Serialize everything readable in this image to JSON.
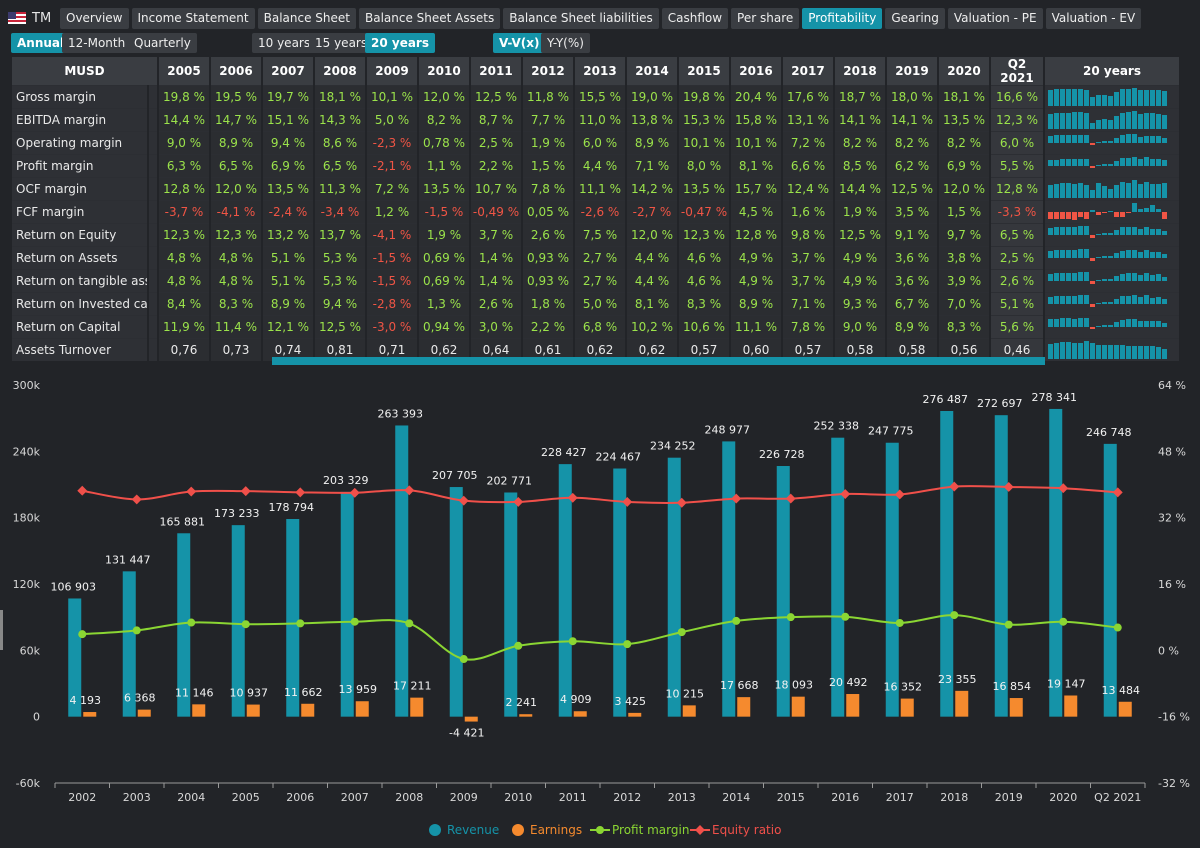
{
  "header": {
    "ticker": "TM",
    "tabs": [
      "Overview",
      "Income Statement",
      "Balance Sheet",
      "Balance Sheet Assets",
      "Balance Sheet liabilities",
      "Cashflow",
      "Per share",
      "Profitability",
      "Gearing",
      "Valuation - PE",
      "Valuation - EV"
    ],
    "active_tab": "Profitability"
  },
  "period_buttons": [
    "Annual",
    "12-Month",
    "Quarterly"
  ],
  "range_buttons": [
    "10 years",
    "15 years",
    "20 years"
  ],
  "mode_buttons": [
    "V-V(x)",
    "Y-Y(%)"
  ],
  "table": {
    "unit_label": "MUSD",
    "columns": [
      "2005",
      "2006",
      "2007",
      "2008",
      "2009",
      "2010",
      "2011",
      "2012",
      "2013",
      "2014",
      "2015",
      "2016",
      "2017",
      "2018",
      "2019",
      "2020",
      "Q2 2021"
    ],
    "spark_header": "20 years",
    "rows": [
      {
        "label": "Gross margin",
        "values": [
          "19,8 %",
          "19,5 %",
          "19,7 %",
          "18,1 %",
          "10,1 %",
          "12,0 %",
          "12,5 %",
          "11,8 %",
          "15,5 %",
          "19,0 %",
          "19,8 %",
          "20,4 %",
          "17,6 %",
          "18,7 %",
          "18,0 %",
          "18,1 %",
          "16,6 %"
        ],
        "nums": [
          19.8,
          19.5,
          19.7,
          18.1,
          10.1,
          12.0,
          12.5,
          11.8,
          15.5,
          19.0,
          19.8,
          20.4,
          17.6,
          18.7,
          18.0,
          18.1,
          16.6
        ],
        "plain": false
      },
      {
        "label": "EBITDA margin",
        "values": [
          "14,4 %",
          "14,7 %",
          "15,1 %",
          "14,3 %",
          "5,0 %",
          "8,2 %",
          "8,7 %",
          "7,7 %",
          "11,0 %",
          "13,8 %",
          "15,3 %",
          "15,8 %",
          "13,1 %",
          "14,1 %",
          "14,1 %",
          "13,5 %",
          "12,3 %"
        ],
        "nums": [
          14.4,
          14.7,
          15.1,
          14.3,
          5.0,
          8.2,
          8.7,
          7.7,
          11.0,
          13.8,
          15.3,
          15.8,
          13.1,
          14.1,
          14.1,
          13.5,
          12.3
        ],
        "plain": false
      },
      {
        "label": "Operating margin",
        "values": [
          "9,0 %",
          "8,9 %",
          "9,4 %",
          "8,6 %",
          "-2,3 %",
          "0,78 %",
          "2,5 %",
          "1,9 %",
          "6,0 %",
          "8,9 %",
          "10,1 %",
          "10,1 %",
          "7,2 %",
          "8,2 %",
          "8,2 %",
          "8,2 %",
          "6,0 %"
        ],
        "nums": [
          9.0,
          8.9,
          9.4,
          8.6,
          -2.3,
          0.78,
          2.5,
          1.9,
          6.0,
          8.9,
          10.1,
          10.1,
          7.2,
          8.2,
          8.2,
          8.2,
          6.0
        ],
        "plain": false
      },
      {
        "label": "Profit margin",
        "values": [
          "6,3 %",
          "6,5 %",
          "6,9 %",
          "6,5 %",
          "-2,1 %",
          "1,1 %",
          "2,2 %",
          "1,5 %",
          "4,4 %",
          "7,1 %",
          "8,0 %",
          "8,1 %",
          "6,6 %",
          "8,5 %",
          "6,2 %",
          "6,9 %",
          "5,5 %"
        ],
        "nums": [
          6.3,
          6.5,
          6.9,
          6.5,
          -2.1,
          1.1,
          2.2,
          1.5,
          4.4,
          7.1,
          8.0,
          8.1,
          6.6,
          8.5,
          6.2,
          6.9,
          5.5
        ],
        "plain": false
      },
      {
        "label": "OCF margin",
        "values": [
          "12,8 %",
          "12,0 %",
          "13,5 %",
          "11,3 %",
          "7,2 %",
          "13,5 %",
          "10,7 %",
          "7,8 %",
          "11,1 %",
          "14,2 %",
          "13,5 %",
          "15,7 %",
          "12,4 %",
          "14,4 %",
          "12,5 %",
          "12,0 %",
          "12,8 %"
        ],
        "nums": [
          12.8,
          12.0,
          13.5,
          11.3,
          7.2,
          13.5,
          10.7,
          7.8,
          11.1,
          14.2,
          13.5,
          15.7,
          12.4,
          14.4,
          12.5,
          12.0,
          12.8
        ],
        "plain": false
      },
      {
        "label": "FCF margin",
        "values": [
          "-3,7 %",
          "-4,1 %",
          "-2,4 %",
          "-3,4 %",
          "1,2 %",
          "-1,5 %",
          "-0,49 %",
          "0,05 %",
          "-2,6 %",
          "-2,7 %",
          "-0,47 %",
          "4,5 %",
          "1,6 %",
          "1,9 %",
          "3,5 %",
          "1,5 %",
          "-3,3 %"
        ],
        "nums": [
          -3.7,
          -4.1,
          -2.4,
          -3.4,
          1.2,
          -1.5,
          -0.49,
          0.05,
          -2.6,
          -2.7,
          -0.47,
          4.5,
          1.6,
          1.9,
          3.5,
          1.5,
          -3.3
        ],
        "plain": false
      },
      {
        "label": "Return on Equity",
        "values": [
          "12,3 %",
          "12,3 %",
          "13,2 %",
          "13,7 %",
          "-4,1 %",
          "1,9 %",
          "3,7 %",
          "2,6 %",
          "7,5 %",
          "12,0 %",
          "12,3 %",
          "12,8 %",
          "9,8 %",
          "12,5 %",
          "9,1 %",
          "9,7 %",
          "6,5 %"
        ],
        "nums": [
          12.3,
          12.3,
          13.2,
          13.7,
          -4.1,
          1.9,
          3.7,
          2.6,
          7.5,
          12.0,
          12.3,
          12.8,
          9.8,
          12.5,
          9.1,
          9.7,
          6.5
        ],
        "plain": false
      },
      {
        "label": "Return on Assets",
        "values": [
          "4,8 %",
          "4,8 %",
          "5,1 %",
          "5,3 %",
          "-1,5 %",
          "0,69 %",
          "1,4 %",
          "0,93 %",
          "2,7 %",
          "4,4 %",
          "4,6 %",
          "4,9 %",
          "3,7 %",
          "4,9 %",
          "3,6 %",
          "3,8 %",
          "2,5 %"
        ],
        "nums": [
          4.8,
          4.8,
          5.1,
          5.3,
          -1.5,
          0.69,
          1.4,
          0.93,
          2.7,
          4.4,
          4.6,
          4.9,
          3.7,
          4.9,
          3.6,
          3.8,
          2.5
        ],
        "plain": false
      },
      {
        "label": "Return on tangible assets",
        "values": [
          "4,8 %",
          "4,8 %",
          "5,1 %",
          "5,3 %",
          "-1,5 %",
          "0,69 %",
          "1,4 %",
          "0,93 %",
          "2,7 %",
          "4,4 %",
          "4,6 %",
          "4,9 %",
          "3,7 %",
          "4,9 %",
          "3,6 %",
          "3,9 %",
          "2,6 %"
        ],
        "nums": [
          4.8,
          4.8,
          5.1,
          5.3,
          -1.5,
          0.69,
          1.4,
          0.93,
          2.7,
          4.4,
          4.6,
          4.9,
          3.7,
          4.9,
          3.6,
          3.9,
          2.6
        ],
        "plain": false
      },
      {
        "label": "Return on Invested capita",
        "values": [
          "8,4 %",
          "8,3 %",
          "8,9 %",
          "9,4 %",
          "-2,8 %",
          "1,3 %",
          "2,6 %",
          "1,8 %",
          "5,0 %",
          "8,1 %",
          "8,3 %",
          "8,9 %",
          "7,1 %",
          "9,3 %",
          "6,7 %",
          "7,0 %",
          "5,1 %"
        ],
        "nums": [
          8.4,
          8.3,
          8.9,
          9.4,
          -2.8,
          1.3,
          2.6,
          1.8,
          5.0,
          8.1,
          8.3,
          8.9,
          7.1,
          9.3,
          6.7,
          7.0,
          5.1
        ],
        "plain": false
      },
      {
        "label": "Return on Capital",
        "values": [
          "11,9 %",
          "11,4 %",
          "12,1 %",
          "12,5 %",
          "-3,0 %",
          "0,94 %",
          "3,0 %",
          "2,2 %",
          "6,8 %",
          "10,2 %",
          "10,6 %",
          "11,1 %",
          "7,8 %",
          "9,0 %",
          "8,9 %",
          "8,3 %",
          "5,6 %"
        ],
        "nums": [
          11.9,
          11.4,
          12.1,
          12.5,
          -3.0,
          0.94,
          3.0,
          2.2,
          6.8,
          10.2,
          10.6,
          11.1,
          7.8,
          9.0,
          8.9,
          8.3,
          5.6
        ],
        "plain": false
      },
      {
        "label": "Assets Turnover",
        "values": [
          "0,76",
          "0,73",
          "0,74",
          "0,81",
          "0,71",
          "0,62",
          "0,64",
          "0,61",
          "0,62",
          "0,62",
          "0,57",
          "0,60",
          "0,57",
          "0,58",
          "0,58",
          "0,56",
          "0,46"
        ],
        "nums": [
          0.76,
          0.73,
          0.74,
          0.81,
          0.71,
          0.62,
          0.64,
          0.61,
          0.62,
          0.62,
          0.57,
          0.6,
          0.57,
          0.58,
          0.58,
          0.56,
          0.46
        ],
        "plain": true
      }
    ]
  },
  "chart_data": {
    "type": "bar",
    "categories": [
      "2002",
      "2003",
      "2004",
      "2005",
      "2006",
      "2007",
      "2008",
      "2009",
      "2010",
      "2011",
      "2012",
      "2013",
      "2014",
      "2015",
      "2016",
      "2017",
      "2018",
      "2019",
      "2020",
      "Q2 2021"
    ],
    "series": [
      {
        "name": "Revenue",
        "kind": "bar",
        "color": "#1593a8",
        "axis": "left",
        "values": [
          106903,
          131447,
          165881,
          173233,
          178794,
          203329,
          263393,
          207705,
          202771,
          228427,
          224467,
          234252,
          248977,
          226728,
          252338,
          247775,
          276487,
          272697,
          278341,
          246748
        ],
        "labels": [
          "106 903",
          "131 447",
          "165 881",
          "173 233",
          "178 794",
          "203 329",
          "263 393",
          "207 705",
          "202 771",
          "228 427",
          "224 467",
          "234 252",
          "248 977",
          "226 728",
          "252 338",
          "247 775",
          "276 487",
          "272 697",
          "278 341",
          "246 748"
        ]
      },
      {
        "name": "Earnings",
        "kind": "bar",
        "color": "#f58a2e",
        "axis": "left",
        "values": [
          4193,
          6368,
          11146,
          10937,
          11662,
          13959,
          17211,
          -4421,
          2241,
          4909,
          3425,
          10215,
          17668,
          18093,
          20492,
          16352,
          23355,
          16854,
          19147,
          13484
        ],
        "labels": [
          "4 193",
          "6 368",
          "11 146",
          "10 937",
          "11 662",
          "13 959",
          "17 211",
          "-4 421",
          "2 241",
          "4 909",
          "3 425",
          "10 215",
          "17 668",
          "18 093",
          "20 492",
          "16 352",
          "23 355",
          "16 854",
          "19 147",
          "13 484"
        ]
      },
      {
        "name": "Profit margin",
        "kind": "line",
        "color": "#8bd633",
        "axis": "right",
        "values": [
          3.9,
          4.8,
          6.7,
          6.3,
          6.5,
          6.9,
          6.5,
          -2.1,
          1.1,
          2.2,
          1.5,
          4.4,
          7.1,
          8.0,
          8.1,
          6.6,
          8.5,
          6.2,
          6.9,
          5.5
        ]
      },
      {
        "name": "Equity ratio",
        "kind": "line",
        "color": "#f0504a",
        "axis": "right",
        "values": [
          38.5,
          36.4,
          38.3,
          38.4,
          38.1,
          38.0,
          38.6,
          36.1,
          35.8,
          36.8,
          35.8,
          35.6,
          36.6,
          36.6,
          37.7,
          37.6,
          39.5,
          39.4,
          39.1,
          38.1
        ]
      }
    ],
    "yaxis_left": {
      "min": -60000,
      "max": 300000,
      "ticks": [
        "-60k",
        "0",
        "60k",
        "120k",
        "180k",
        "240k",
        "300k"
      ]
    },
    "yaxis_right": {
      "min": -32,
      "max": 64,
      "ticks": [
        "-32 %",
        "-16 %",
        "0 %",
        "16 %",
        "32 %",
        "48 %",
        "64 %"
      ]
    },
    "legend_position": "bottom-center",
    "grid": false
  }
}
